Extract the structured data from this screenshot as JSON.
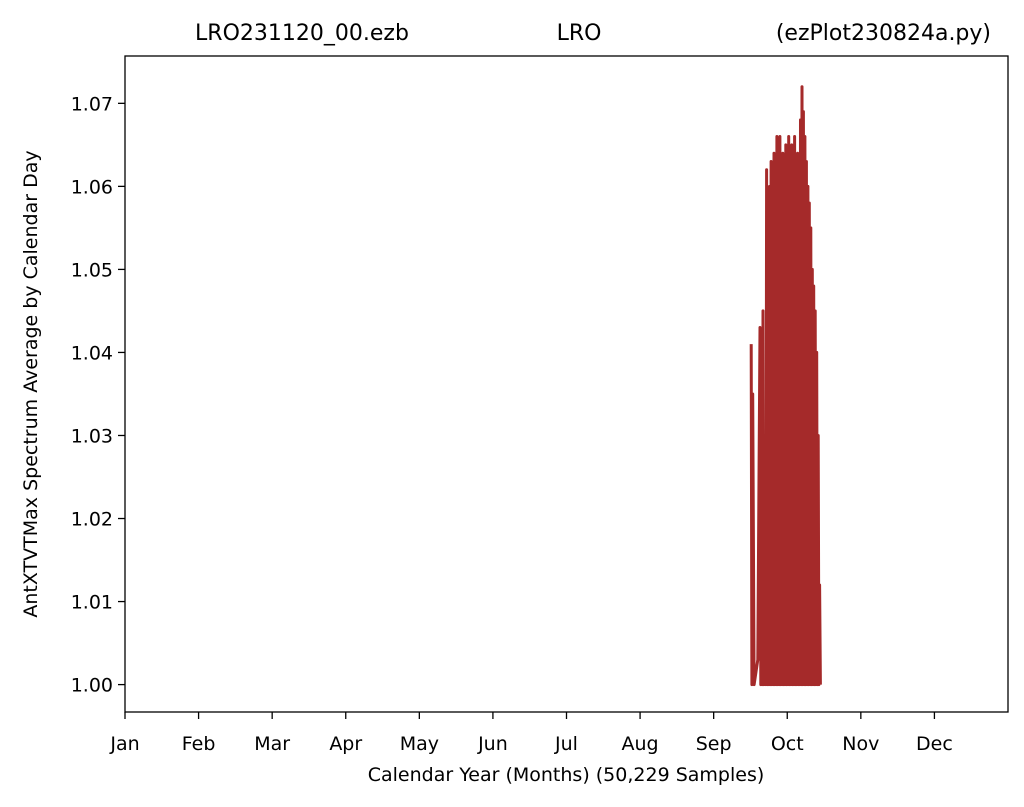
{
  "header": {
    "left": "LRO231120_00.ezb",
    "center": "LRO",
    "right": "(ezPlot230824a.py)"
  },
  "colors": {
    "line": "#a52a2a",
    "axes": "#000000",
    "background": "#ffffff"
  },
  "chart_data": {
    "type": "line",
    "title": "",
    "xlabel": "Calendar Year (Months) (50,229 Samples)",
    "ylabel": "AntXTVTMax Spectrum Average by Calendar Day",
    "xlim": [
      0,
      12
    ],
    "ylim": [
      0.9967,
      1.0757
    ],
    "grid": false,
    "legend": "none",
    "x_ticks": [
      {
        "value": 0,
        "label": "Jan"
      },
      {
        "value": 1,
        "label": "Feb"
      },
      {
        "value": 2,
        "label": "Mar"
      },
      {
        "value": 3,
        "label": "Apr"
      },
      {
        "value": 4,
        "label": "May"
      },
      {
        "value": 5,
        "label": "Jun"
      },
      {
        "value": 6,
        "label": "Jul"
      },
      {
        "value": 7,
        "label": "Aug"
      },
      {
        "value": 8,
        "label": "Sep"
      },
      {
        "value": 9,
        "label": "Oct"
      },
      {
        "value": 10,
        "label": "Nov"
      },
      {
        "value": 11,
        "label": "Dec"
      }
    ],
    "y_ticks": [
      {
        "value": 1.0,
        "label": "1.00"
      },
      {
        "value": 1.01,
        "label": "1.01"
      },
      {
        "value": 1.02,
        "label": "1.02"
      },
      {
        "value": 1.03,
        "label": "1.03"
      },
      {
        "value": 1.04,
        "label": "1.04"
      },
      {
        "value": 1.05,
        "label": "1.05"
      },
      {
        "value": 1.06,
        "label": "1.06"
      },
      {
        "value": 1.07,
        "label": "1.07"
      }
    ],
    "series": [
      {
        "x": [
          8.51,
          8.52,
          8.53,
          8.55,
          8.6,
          8.63,
          8.64,
          8.65,
          8.66,
          8.67,
          8.68,
          8.7,
          8.71,
          8.72,
          8.73,
          8.74,
          8.75,
          8.76,
          8.77,
          8.78,
          8.79,
          8.8,
          8.81,
          8.82,
          8.83,
          8.84,
          8.85,
          8.86,
          8.87,
          8.88,
          8.89,
          8.9,
          8.91,
          8.92,
          8.93,
          8.94,
          8.95,
          8.96,
          8.97,
          8.98,
          8.99,
          9.0,
          9.01,
          9.02,
          9.03,
          9.04,
          9.05,
          9.06,
          9.07,
          9.08,
          9.09,
          9.1,
          9.11,
          9.12,
          9.13,
          9.14,
          9.15,
          9.16,
          9.17,
          9.18,
          9.19,
          9.2,
          9.21,
          9.22,
          9.23,
          9.24,
          9.25,
          9.26,
          9.27,
          9.28,
          9.29,
          9.3,
          9.31,
          9.32,
          9.33,
          9.34,
          9.35,
          9.36,
          9.37,
          9.38,
          9.39,
          9.4,
          9.41,
          9.42,
          9.43,
          9.44,
          9.45
        ],
        "y": [
          1.041,
          1.0,
          1.035,
          1.0,
          1.003,
          1.043,
          1.0,
          1.041,
          1.0,
          1.045,
          1.0,
          1.025,
          1.0,
          1.062,
          1.0,
          1.058,
          1.0,
          1.06,
          1.0,
          1.063,
          1.0,
          1.062,
          1.0,
          1.064,
          1.0,
          1.06,
          1.0,
          1.066,
          1.0,
          1.063,
          1.0,
          1.066,
          1.0,
          1.062,
          1.0,
          1.064,
          1.0,
          1.057,
          1.0,
          1.065,
          1.0,
          1.062,
          1.0,
          1.066,
          1.0,
          1.063,
          1.0,
          1.065,
          1.0,
          1.06,
          1.0,
          1.066,
          1.0,
          1.063,
          1.0,
          1.064,
          1.0,
          1.06,
          1.0,
          1.068,
          1.0,
          1.072,
          1.0,
          1.069,
          1.0,
          1.066,
          1.0,
          1.063,
          1.0,
          1.06,
          1.0,
          1.058,
          1.0,
          1.055,
          1.0,
          1.05,
          1.0,
          1.048,
          1.0,
          1.045,
          1.0,
          1.04,
          1.0,
          1.03,
          1.0,
          1.012,
          1.0
        ]
      }
    ]
  }
}
